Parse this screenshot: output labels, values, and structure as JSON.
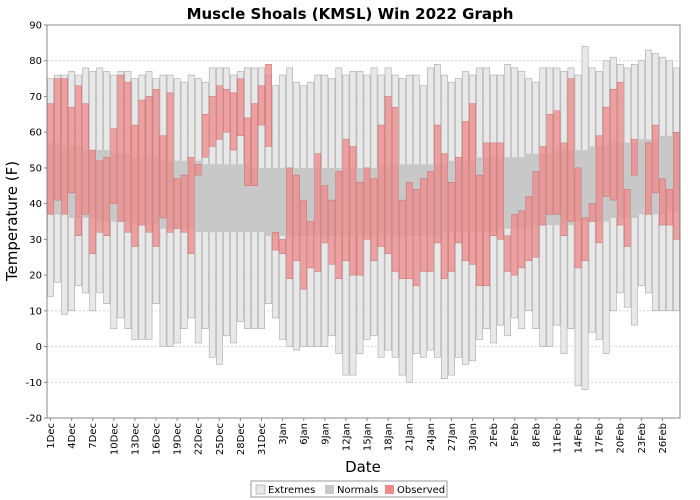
{
  "chart_data": {
    "type": "bar",
    "title": "Muscle Shoals (KMSL) Win 2022 Graph",
    "xlabel": "Date",
    "ylabel": "Temperature (F)",
    "ylim": [
      -20,
      90
    ],
    "yticks": [
      -20,
      -10,
      0,
      10,
      20,
      30,
      40,
      50,
      60,
      70,
      80,
      90
    ],
    "grid": true,
    "legend_position": "bottom",
    "colors": {
      "extremes_fill": "#e8e8e8",
      "extremes_stroke": "#9a9a9a",
      "normals_fill": "#c8c8c8",
      "observed_fill": "#f08a8a",
      "observed_stroke": "#c06060",
      "grid": "#d0d0d0"
    },
    "x_tick_labels": [
      "1Dec",
      "4Dec",
      "7Dec",
      "10Dec",
      "13Dec",
      "16Dec",
      "19Dec",
      "22Dec",
      "25Dec",
      "28Dec",
      "31Dec",
      "3Jan",
      "6Jan",
      "9Jan",
      "12Jan",
      "15Jan",
      "18Jan",
      "21Jan",
      "24Jan",
      "27Jan",
      "30Jan",
      "2Feb",
      "5Feb",
      "8Feb",
      "11Feb",
      "14Feb",
      "17Feb",
      "20Feb",
      "23Feb",
      "26Feb"
    ],
    "days": [
      "1Dec",
      "2Dec",
      "3Dec",
      "4Dec",
      "5Dec",
      "6Dec",
      "7Dec",
      "8Dec",
      "9Dec",
      "10Dec",
      "11Dec",
      "12Dec",
      "13Dec",
      "14Dec",
      "15Dec",
      "16Dec",
      "17Dec",
      "18Dec",
      "19Dec",
      "20Dec",
      "21Dec",
      "22Dec",
      "23Dec",
      "24Dec",
      "25Dec",
      "26Dec",
      "27Dec",
      "28Dec",
      "29Dec",
      "30Dec",
      "31Dec",
      "1Jan",
      "2Jan",
      "3Jan",
      "4Jan",
      "5Jan",
      "6Jan",
      "7Jan",
      "8Jan",
      "9Jan",
      "10Jan",
      "11Jan",
      "12Jan",
      "13Jan",
      "14Jan",
      "15Jan",
      "16Jan",
      "17Jan",
      "18Jan",
      "19Jan",
      "20Jan",
      "21Jan",
      "22Jan",
      "23Jan",
      "24Jan",
      "25Jan",
      "26Jan",
      "27Jan",
      "28Jan",
      "29Jan",
      "30Jan",
      "31Jan",
      "1Feb",
      "2Feb",
      "3Feb",
      "4Feb",
      "5Feb",
      "6Feb",
      "7Feb",
      "8Feb",
      "9Feb",
      "10Feb",
      "11Feb",
      "12Feb",
      "13Feb",
      "14Feb",
      "15Feb",
      "16Feb",
      "17Feb",
      "18Feb",
      "19Feb",
      "20Feb",
      "21Feb",
      "22Feb",
      "23Feb",
      "24Feb",
      "25Feb",
      "26Feb",
      "27Feb",
      "28Feb"
    ],
    "extremes_high": [
      75,
      76,
      76,
      77,
      76,
      78,
      77,
      78,
      77,
      76,
      77,
      77,
      75,
      76,
      77,
      75,
      76,
      76,
      75,
      74,
      76,
      75,
      74,
      78,
      78,
      78,
      76,
      77,
      78,
      78,
      78,
      76,
      73,
      76,
      78,
      74,
      73,
      74,
      76,
      76,
      75,
      78,
      76,
      77,
      77,
      76,
      78,
      76,
      78,
      76,
      75,
      76,
      76,
      73,
      78,
      79,
      76,
      74,
      75,
      77,
      76,
      78,
      78,
      76,
      76,
      79,
      78,
      77,
      75,
      74,
      78,
      78,
      78,
      77,
      78,
      76,
      84,
      78,
      77,
      80,
      81,
      79,
      78,
      79,
      80,
      83,
      82,
      81,
      80,
      78
    ],
    "extremes_low": [
      14,
      18,
      9,
      10,
      17,
      15,
      10,
      15,
      12,
      5,
      8,
      5,
      2,
      2,
      2,
      12,
      0,
      0,
      1,
      5,
      8,
      1,
      5,
      -3,
      -5,
      3,
      1,
      7,
      5,
      5,
      5,
      12,
      8,
      2,
      0,
      -1,
      0,
      0,
      0,
      0,
      3,
      -2,
      -8,
      -8,
      -2,
      2,
      3,
      -3,
      -1,
      -3,
      -8,
      -10,
      -2,
      -3,
      -1,
      -3,
      -9,
      -8,
      -3,
      -5,
      -4,
      2,
      5,
      1,
      6,
      3,
      8,
      5,
      10,
      5,
      0,
      0,
      6,
      -2,
      5,
      -11,
      -12,
      4,
      2,
      -2,
      10,
      15,
      11,
      6,
      17,
      15,
      10,
      10,
      10,
      10
    ],
    "normal_high": [
      57,
      57,
      56,
      56,
      56,
      55,
      55,
      55,
      55,
      54,
      54,
      54,
      53,
      53,
      53,
      53,
      52,
      52,
      52,
      52,
      52,
      52,
      51,
      51,
      51,
      51,
      51,
      51,
      51,
      50,
      50,
      50,
      50,
      50,
      50,
      50,
      50,
      50,
      50,
      50,
      50,
      50,
      50,
      50,
      50,
      50,
      50,
      51,
      51,
      51,
      51,
      51,
      51,
      51,
      51,
      51,
      51,
      52,
      52,
      52,
      52,
      53,
      53,
      53,
      53,
      53,
      53,
      53,
      54,
      54,
      54,
      54,
      55,
      55,
      55,
      55,
      55,
      56,
      56,
      56,
      57,
      57,
      57,
      57,
      58,
      58,
      58,
      59,
      59,
      60
    ],
    "normal_low": [
      37,
      37,
      37,
      36,
      36,
      36,
      36,
      35,
      35,
      35,
      35,
      35,
      34,
      34,
      34,
      34,
      33,
      33,
      33,
      33,
      33,
      32,
      32,
      32,
      32,
      32,
      32,
      32,
      32,
      32,
      32,
      31,
      31,
      31,
      31,
      31,
      31,
      31,
      31,
      31,
      31,
      31,
      31,
      31,
      31,
      31,
      31,
      31,
      31,
      31,
      31,
      31,
      31,
      31,
      31,
      31,
      32,
      32,
      32,
      32,
      32,
      32,
      32,
      32,
      33,
      33,
      33,
      33,
      33,
      34,
      34,
      34,
      34,
      34,
      34,
      35,
      35,
      35,
      35,
      35,
      36,
      36,
      36,
      36,
      37,
      37,
      37,
      37,
      38,
      38
    ],
    "observed_high": [
      68,
      75,
      75,
      67,
      73,
      68,
      55,
      52,
      53,
      61,
      76,
      74,
      62,
      69,
      70,
      72,
      59,
      71,
      47,
      48,
      53,
      51,
      65,
      70,
      73,
      72,
      71,
      75,
      64,
      68,
      73,
      79,
      32,
      30,
      50,
      48,
      41,
      35,
      54,
      45,
      41,
      49,
      58,
      56,
      46,
      50,
      47,
      62,
      70,
      67,
      41,
      46,
      44,
      47,
      49,
      62,
      54,
      46,
      53,
      63,
      68,
      48,
      57,
      57,
      57,
      31,
      37,
      38,
      42,
      49,
      56,
      65,
      66,
      57,
      75,
      50,
      36,
      40,
      59,
      67,
      72,
      74,
      44,
      58,
      38,
      57,
      62,
      47,
      44,
      60
    ],
    "observed_low": [
      37,
      41,
      37,
      43,
      31,
      37,
      26,
      32,
      31,
      40,
      35,
      32,
      28,
      34,
      32,
      28,
      36,
      32,
      33,
      32,
      26,
      48,
      53,
      56,
      58,
      60,
      55,
      59,
      45,
      45,
      62,
      56,
      27,
      26,
      19,
      24,
      16,
      22,
      21,
      29,
      23,
      19,
      24,
      20,
      20,
      30,
      24,
      28,
      26,
      21,
      19,
      19,
      17,
      21,
      21,
      29,
      19,
      21,
      29,
      24,
      23,
      17,
      17,
      31,
      30,
      21,
      20,
      22,
      24,
      25,
      34,
      37,
      37,
      31,
      35,
      22,
      24,
      35,
      29,
      42,
      41,
      34,
      28,
      48,
      52,
      37,
      43,
      34,
      34,
      30
    ],
    "legend": [
      "Extremes",
      "Normals",
      "Observed"
    ]
  }
}
